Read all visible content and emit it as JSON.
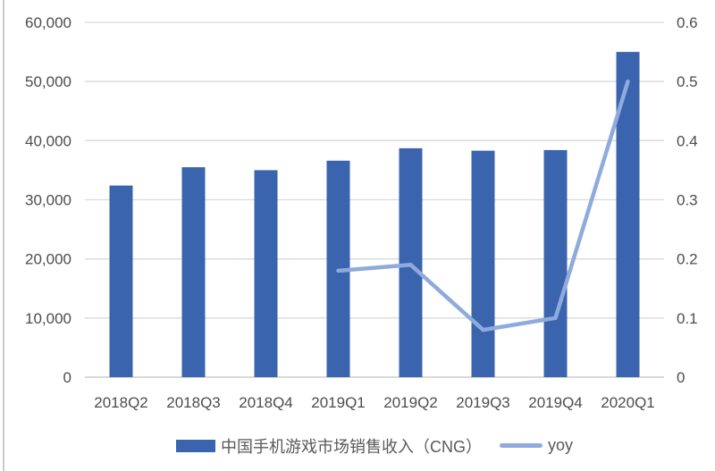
{
  "chart_data": {
    "type": "combo-bar-line",
    "categories": [
      "2018Q2",
      "2018Q3",
      "2018Q4",
      "2019Q1",
      "2019Q2",
      "2019Q3",
      "2019Q4",
      "2020Q1"
    ],
    "series": [
      {
        "name": "中国手机游戏市场销售收入（CNG）",
        "type": "bar",
        "axis": "left",
        "color": "#3A65AE",
        "values": [
          32400,
          35500,
          35000,
          36600,
          38700,
          38300,
          38400,
          55000
        ]
      },
      {
        "name": "yoy",
        "type": "line",
        "axis": "right",
        "color": "#8FAADC",
        "values": [
          null,
          null,
          null,
          0.18,
          0.19,
          0.08,
          0.1,
          0.5
        ]
      }
    ],
    "left_axis": {
      "min": 0,
      "max": 60000,
      "step": 10000,
      "tick_labels": [
        "0",
        "10,000",
        "20,000",
        "30,000",
        "40,000",
        "50,000",
        "60,000"
      ]
    },
    "right_axis": {
      "min": 0,
      "max": 0.6,
      "step": 0.1,
      "tick_labels": [
        "0",
        "0.1",
        "0.2",
        "0.3",
        "0.4",
        "0.5",
        "0.6"
      ]
    },
    "grid": true,
    "legend_position": "bottom",
    "colors": {
      "grid": "#D9D9D9",
      "axis_line": "#C2C2C2",
      "tick_text": "#4D4D4D",
      "legend_text": "#595959",
      "background": "#FFFFFF",
      "panel_border": "#C9C9D2"
    }
  }
}
